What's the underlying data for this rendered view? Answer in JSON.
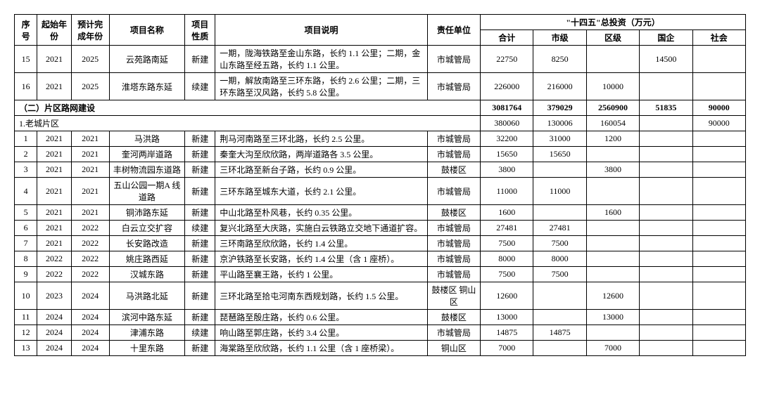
{
  "headers": {
    "seq": "序号",
    "startYear": "起始年份",
    "endYear": "预计完成年份",
    "projName": "项目名称",
    "projNature": "项目性质",
    "projDesc": "项目说明",
    "respUnit": "责任单位",
    "investGroup": "\"十四五\"总投资（万元）",
    "sum": "合计",
    "city": "市级",
    "district": "区级",
    "soe": "国企",
    "social": "社会"
  },
  "rows": [
    {
      "seq": "15",
      "sy": "2021",
      "ey": "2025",
      "name": "云苑路南延",
      "nat": "新建",
      "desc": "一期，陇海铁路至金山东路，长约 1.1 公里；二期，金山东路至经五路，长约 1.1 公里。",
      "resp": "市城管局",
      "sum": "22750",
      "city": "8250",
      "dist": "",
      "soe": "14500",
      "soc": ""
    },
    {
      "seq": "16",
      "sy": "2021",
      "ey": "2025",
      "name": "淮塔东路东延",
      "nat": "续建",
      "desc": "一期，解放南路至三环东路，长约 2.6 公里；二期，三环东路至汉风路，长约 5.8 公里。",
      "resp": "市城管局",
      "sum": "226000",
      "city": "216000",
      "dist": "10000",
      "soe": "",
      "soc": ""
    }
  ],
  "section": {
    "label": "（二）片区路网建设",
    "sum": "3081764",
    "city": "379029",
    "dist": "2560900",
    "soe": "51835",
    "soc": "90000"
  },
  "subsection": {
    "label": "1.老城片区",
    "sum": "380060",
    "city": "130006",
    "dist": "160054",
    "soe": "",
    "soc": "90000"
  },
  "subrows": [
    {
      "seq": "1",
      "sy": "2021",
      "ey": "2021",
      "name": "马洪路",
      "nat": "新建",
      "desc": "荆马河南路至三环北路，长约 2.5 公里。",
      "resp": "市城管局",
      "sum": "32200",
      "city": "31000",
      "dist": "1200",
      "soe": "",
      "soc": ""
    },
    {
      "seq": "2",
      "sy": "2021",
      "ey": "2021",
      "name": "奎河两岸道路",
      "nat": "新建",
      "desc": "秦奎大沟至欣欣路，两岸道路各 3.5 公里。",
      "resp": "市城管局",
      "sum": "15650",
      "city": "15650",
      "dist": "",
      "soe": "",
      "soc": ""
    },
    {
      "seq": "3",
      "sy": "2021",
      "ey": "2021",
      "name": "丰树物流园东道路",
      "nat": "新建",
      "desc": "三环北路至新台子路，长约 0.9 公里。",
      "resp": "鼓楼区",
      "sum": "3800",
      "city": "",
      "dist": "3800",
      "soe": "",
      "soc": ""
    },
    {
      "seq": "4",
      "sy": "2021",
      "ey": "2021",
      "name": "五山公园一期A 线道路",
      "nat": "新建",
      "desc": "三环东路至城东大道，长约 2.1 公里。",
      "resp": "市城管局",
      "sum": "11000",
      "city": "11000",
      "dist": "",
      "soe": "",
      "soc": ""
    },
    {
      "seq": "5",
      "sy": "2021",
      "ey": "2021",
      "name": "铜沛路东延",
      "nat": "新建",
      "desc": "中山北路至朴风巷，长约 0.35 公里。",
      "resp": "鼓楼区",
      "sum": "1600",
      "city": "",
      "dist": "1600",
      "soe": "",
      "soc": ""
    },
    {
      "seq": "6",
      "sy": "2021",
      "ey": "2022",
      "name": "白云立交扩容",
      "nat": "续建",
      "desc": "复兴北路至大庆路，实施白云铁路立交地下通道扩容。",
      "resp": "市城管局",
      "sum": "27481",
      "city": "27481",
      "dist": "",
      "soe": "",
      "soc": ""
    },
    {
      "seq": "7",
      "sy": "2021",
      "ey": "2022",
      "name": "长安路改造",
      "nat": "新建",
      "desc": "三环南路至欣欣路，长约 1.4 公里。",
      "resp": "市城管局",
      "sum": "7500",
      "city": "7500",
      "dist": "",
      "soe": "",
      "soc": ""
    },
    {
      "seq": "8",
      "sy": "2022",
      "ey": "2022",
      "name": "姚庄路西延",
      "nat": "新建",
      "desc": "京沪铁路至长安路，长约 1.4 公里（含 1 座桥）。",
      "resp": "市城管局",
      "sum": "8000",
      "city": "8000",
      "dist": "",
      "soe": "",
      "soc": ""
    },
    {
      "seq": "9",
      "sy": "2022",
      "ey": "2022",
      "name": "汉城东路",
      "nat": "新建",
      "desc": "平山路至襄王路，长约 1 公里。",
      "resp": "市城管局",
      "sum": "7500",
      "city": "7500",
      "dist": "",
      "soe": "",
      "soc": ""
    },
    {
      "seq": "10",
      "sy": "2023",
      "ey": "2024",
      "name": "马洪路北延",
      "nat": "新建",
      "desc": "三环北路至拾屯河南东西规划路，长约 1.5 公里。",
      "resp": "鼓楼区 铜山区",
      "sum": "12600",
      "city": "",
      "dist": "12600",
      "soe": "",
      "soc": ""
    },
    {
      "seq": "11",
      "sy": "2024",
      "ey": "2024",
      "name": "滨河中路东延",
      "nat": "新建",
      "desc": "琵琶路至殷庄路，长约 0.6 公里。",
      "resp": "鼓楼区",
      "sum": "13000",
      "city": "",
      "dist": "13000",
      "soe": "",
      "soc": ""
    },
    {
      "seq": "12",
      "sy": "2024",
      "ey": "2024",
      "name": "津浦东路",
      "nat": "续建",
      "desc": "响山路至郭庄路，长约 3.4 公里。",
      "resp": "市城管局",
      "sum": "14875",
      "city": "14875",
      "dist": "",
      "soe": "",
      "soc": ""
    },
    {
      "seq": "13",
      "sy": "2024",
      "ey": "2024",
      "name": "十里东路",
      "nat": "新建",
      "desc": "海棠路至欣欣路，长约 1.1 公里（含 1 座桥梁）。",
      "resp": "铜山区",
      "sum": "7000",
      "city": "",
      "dist": "7000",
      "soe": "",
      "soc": ""
    }
  ]
}
